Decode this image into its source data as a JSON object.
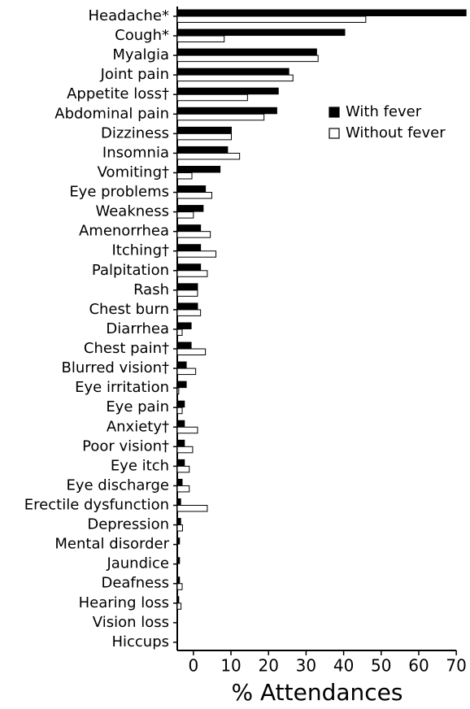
{
  "chart_data": {
    "type": "hbar",
    "xlabel": "% Attendances",
    "categories": [
      "Headache*",
      "Cough*",
      "Myalgia",
      "Joint pain",
      "Appetite loss†",
      "Abdominal pain",
      "Dizziness",
      "Insomnia",
      "Vomiting†",
      "Eye problems",
      "Weakness",
      "Amenorrhea",
      "Itching†",
      "Palpitation",
      "Rash",
      "Chest burn",
      "Diarrhea",
      "Chest pain†",
      "Blurred vision†",
      "Eye irritation",
      "Eye pain",
      "Anxiety†",
      "Poor vision†",
      "Eye itch",
      "Eye discharge",
      "Erectile dysfunction",
      "Depression",
      "Mental disorder",
      "Jaundice",
      "Deafness",
      "Hearing loss",
      "Vision loss",
      "Hiccups"
    ],
    "series": [
      {
        "name": "With fever",
        "color": "#000000",
        "values": [
          72.6,
          40.3,
          32.8,
          25.4,
          22.6,
          22.2,
          10.1,
          9.1,
          7.1,
          3.2,
          2.6,
          1.9,
          1.9,
          1.9,
          1.1,
          1.1,
          -0.6,
          -0.6,
          -1.9,
          -1.9,
          -2.4,
          -2.4,
          -2.4,
          -2.4,
          -3.0,
          -3.4,
          -3.4,
          -3.7,
          -3.7,
          -3.7,
          -3.9,
          null,
          null
        ]
      },
      {
        "name": "Without fever",
        "color": "#ffffff",
        "values": [
          45.9,
          8.2,
          33.2,
          26.5,
          14.4,
          18.8,
          10.1,
          12.3,
          -0.4,
          4.9,
          0,
          4.5,
          6.0,
          3.7,
          1.1,
          1.9,
          -3.0,
          3.2,
          0.6,
          -3.9,
          -3.0,
          1.1,
          -0.2,
          -1.1,
          -1.1,
          3.7,
          -2.9,
          null,
          null,
          -3.0,
          -3.3,
          null,
          null
        ]
      }
    ],
    "xlim": [
      -4.3,
      73
    ],
    "xticks": [
      0,
      10,
      20,
      30,
      40,
      50,
      60,
      70
    ],
    "legend": "right"
  }
}
